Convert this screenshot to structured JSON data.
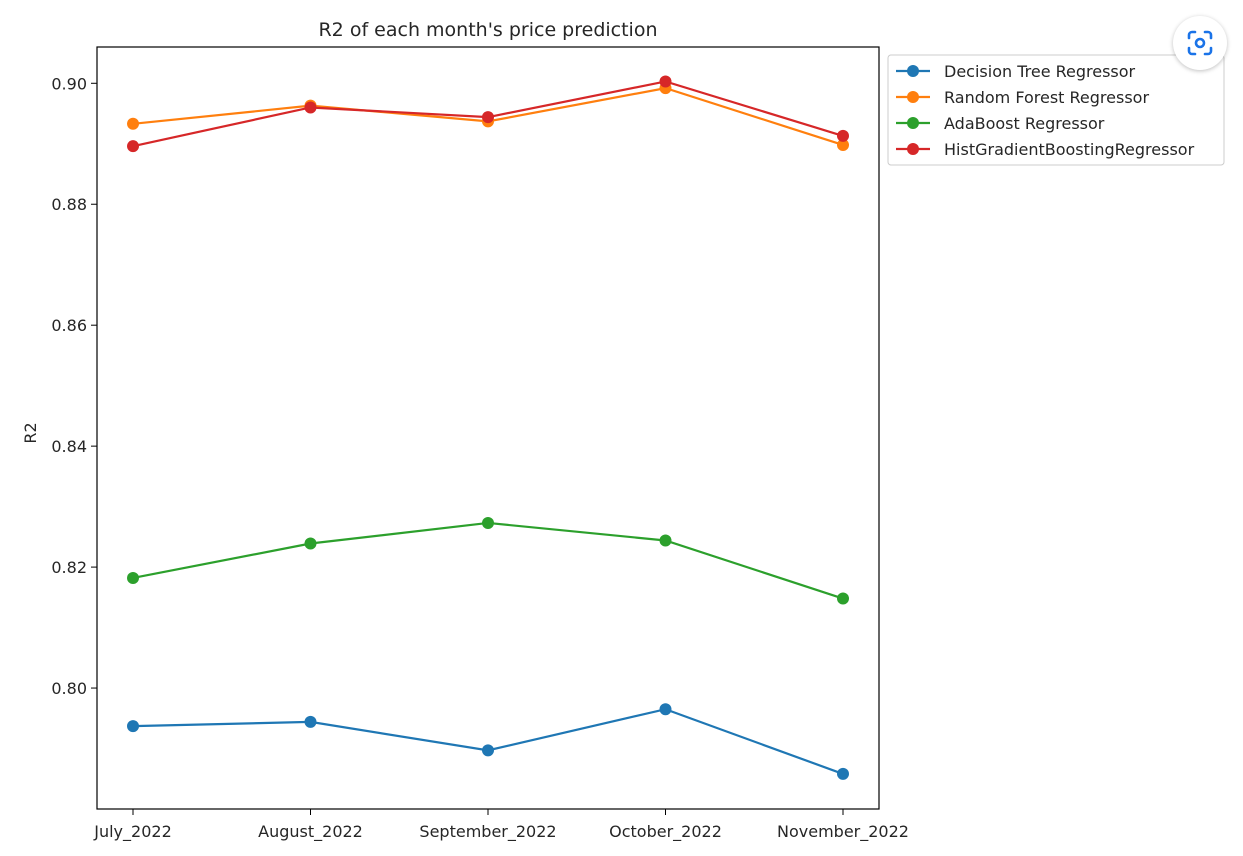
{
  "chart_data": {
    "type": "line",
    "title": "R2 of each month's price prediction",
    "xlabel": "",
    "ylabel": "R2",
    "categories": [
      "July_2022",
      "August_2022",
      "September_2022",
      "October_2022",
      "November_2022"
    ],
    "ylim": [
      0.78,
      0.906
    ],
    "yticks": [
      "0.80",
      "0.82",
      "0.84",
      "0.86",
      "0.88",
      "0.90"
    ],
    "grid": false,
    "legend_position": "outside-top-right",
    "series": [
      {
        "name": "Decision Tree Regressor",
        "color": "#1f77b4",
        "marker": "circle",
        "values": [
          0.7937,
          0.7944,
          0.7897,
          0.7965,
          0.7858
        ]
      },
      {
        "name": "Random Forest Regressor",
        "color": "#ff7f0e",
        "marker": "circle",
        "values": [
          0.8933,
          0.8963,
          0.8937,
          0.8992,
          0.8898
        ]
      },
      {
        "name": "AdaBoost Regressor",
        "color": "#2ca02c",
        "marker": "circle",
        "values": [
          0.8182,
          0.8239,
          0.8273,
          0.8244,
          0.8148
        ]
      },
      {
        "name": "HistGradientBoostingRegressor",
        "color": "#d62728",
        "marker": "circle",
        "values": [
          0.8896,
          0.896,
          0.8944,
          0.9003,
          0.8913
        ]
      }
    ]
  },
  "toolbar": {
    "lens_icon": "visual-search-icon"
  }
}
